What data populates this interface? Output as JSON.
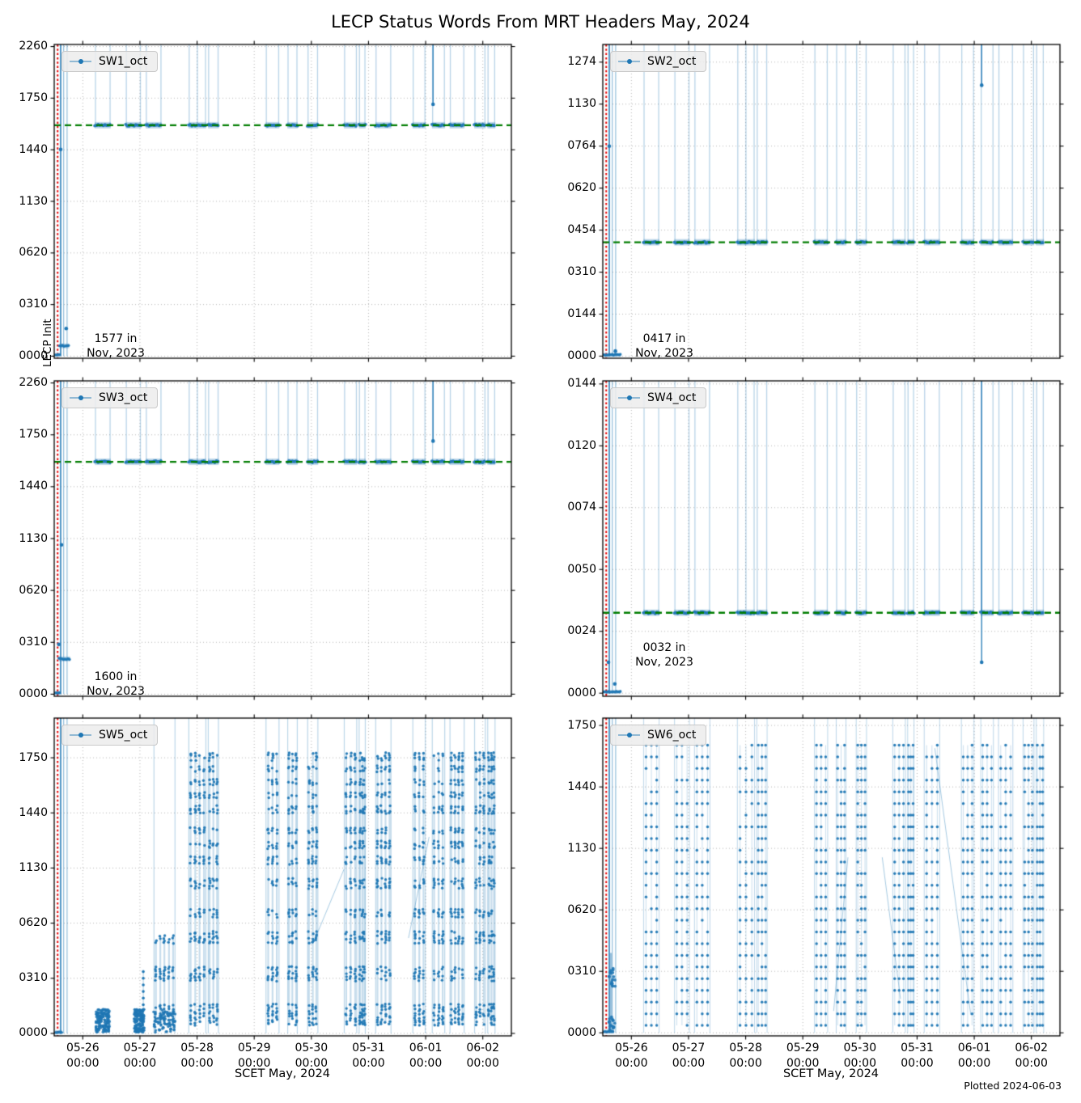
{
  "title": "LECP Status Words From MRT Headers May, 2024",
  "footer": {
    "plotted_note": "Plotted 2024-06-03"
  },
  "x_axis": {
    "label": "SCET May, 2024",
    "dates": [
      "05-26",
      "05-27",
      "05-28",
      "05-29",
      "05-30",
      "05-31",
      "06-01",
      "06-02"
    ],
    "time": "00:00",
    "span_days": 8,
    "tick_days": [
      0.5,
      1.5,
      2.5,
      3.5,
      4.5,
      5.5,
      6.5,
      7.5
    ]
  },
  "style": {
    "point_color": "#1f77b4",
    "light_line": "rgba(31,119,180,0.32)",
    "green_line_color": "#007d00",
    "red_line_color": "#e60000",
    "grid_color": "#b5b5b5",
    "spine_color": "#000000",
    "legend_bg": "#ececec"
  },
  "time_clusters": [
    [
      0.71,
      0.99
    ],
    [
      1.25,
      1.52
    ],
    [
      1.6,
      1.88
    ],
    [
      2.35,
      2.66
    ],
    [
      2.69,
      2.88
    ],
    [
      3.7,
      3.94
    ],
    [
      4.08,
      4.26
    ],
    [
      4.43,
      4.62
    ],
    [
      5.07,
      5.3
    ],
    [
      5.33,
      5.45
    ],
    [
      5.62,
      5.9
    ],
    [
      6.27,
      6.5
    ],
    [
      6.61,
      6.84
    ],
    [
      6.92,
      7.18
    ],
    [
      7.35,
      7.55
    ],
    [
      7.58,
      7.72
    ]
  ],
  "chart_data": [
    {
      "name": "SW1",
      "type": "scatter",
      "mode": "baseline",
      "legend_label": "SW1_oct",
      "ylabel": "LECP Init",
      "ylim": [
        -8,
        1208
      ],
      "yticks": [
        {
          "v": 0,
          "label": "0000"
        },
        {
          "v": 200,
          "label": "0310"
        },
        {
          "v": 400,
          "label": "0620"
        },
        {
          "v": 600,
          "label": "1130"
        },
        {
          "v": 800,
          "label": "1440"
        },
        {
          "v": 1000,
          "label": "1750"
        },
        {
          "v": 1200,
          "label": "2260"
        }
      ],
      "baseline_value": 895,
      "baseline_octal": "1577",
      "green_line": 895,
      "annotation": {
        "line1": "1577 in",
        "line2": "Nov, 2023"
      },
      "red_vline_day": 0.06,
      "dark_vline_day": 0.113,
      "left_vlines": [
        0.165,
        0.225
      ],
      "zero_bar": [
        0.02,
        0.1
      ],
      "low_bar": {
        "range": [
          0.09,
          0.26
        ],
        "value": 40
      },
      "points": [
        [
          0.113,
          801
        ],
        [
          0.21,
          107
        ]
      ],
      "outlier": {
        "day": 6.63,
        "value": 976
      }
    },
    {
      "name": "SW2",
      "type": "scatter",
      "mode": "baseline",
      "legend_label": "SW2_oct",
      "ylim": [
        -5,
        742
      ],
      "yticks": [
        {
          "v": 0,
          "label": "0000"
        },
        {
          "v": 100,
          "label": "0144"
        },
        {
          "v": 200,
          "label": "0310"
        },
        {
          "v": 300,
          "label": "0454"
        },
        {
          "v": 400,
          "label": "0620"
        },
        {
          "v": 500,
          "label": "0764"
        },
        {
          "v": 600,
          "label": "1130"
        },
        {
          "v": 700,
          "label": "1274"
        }
      ],
      "baseline_value": 271,
      "baseline_octal": "0417",
      "green_line": 271,
      "annotation": {
        "line1": "0417 in",
        "line2": "Nov, 2023"
      },
      "red_vline_day": 0.06,
      "dark_vline_day": 0.113,
      "left_vlines": [
        0.165,
        0.225
      ],
      "zero_bar": [
        0.02,
        0.32
      ],
      "points": [
        [
          0.113,
          500
        ],
        [
          0.22,
          12
        ]
      ],
      "outlier": {
        "day": 6.63,
        "value": 645
      }
    },
    {
      "name": "SW3",
      "type": "scatter",
      "mode": "baseline",
      "legend_label": "SW3_oct",
      "ylim": [
        -8,
        1208
      ],
      "yticks": [
        {
          "v": 0,
          "label": "0000"
        },
        {
          "v": 200,
          "label": "0310"
        },
        {
          "v": 400,
          "label": "0620"
        },
        {
          "v": 600,
          "label": "1130"
        },
        {
          "v": 800,
          "label": "1440"
        },
        {
          "v": 1000,
          "label": "1750"
        },
        {
          "v": 1200,
          "label": "2260"
        }
      ],
      "baseline_value": 896,
      "baseline_octal": "1600",
      "green_line": 896,
      "annotation": {
        "line1": "1600 in",
        "line2": "Nov, 2023"
      },
      "red_vline_day": 0.06,
      "dark_vline_day": 0.113,
      "left_vlines": [
        0.165,
        0.225
      ],
      "zero_bar": [
        0.02,
        0.1
      ],
      "low_bar": {
        "range": [
          0.08,
          0.28
        ],
        "value": 136
      },
      "points": [
        [
          0.127,
          576
        ],
        [
          0.08,
          192
        ]
      ],
      "outlier": {
        "day": 6.63,
        "value": 976
      }
    },
    {
      "name": "SW4",
      "type": "scatter",
      "mode": "baseline",
      "legend_label": "SW4_oct",
      "ylim": [
        -1,
        101
      ],
      "yticks": [
        {
          "v": 0,
          "label": "0000"
        },
        {
          "v": 20,
          "label": "0024"
        },
        {
          "v": 40,
          "label": "0050"
        },
        {
          "v": 60,
          "label": "0074"
        },
        {
          "v": 80,
          "label": "0120"
        },
        {
          "v": 100,
          "label": "0144"
        }
      ],
      "baseline_value": 26,
      "baseline_octal": "0032",
      "green_line": 26,
      "annotation": {
        "line1": "0032 in",
        "line2": "Nov, 2023"
      },
      "red_vline_day": 0.06,
      "dark_vline_day": 0.113,
      "left_vlines": [
        0.165,
        0.225
      ],
      "zero_bar": [
        0.02,
        0.32
      ],
      "points": [
        [
          0.1,
          10
        ],
        [
          0.21,
          3
        ]
      ],
      "outlier": {
        "day": 6.63,
        "value": 10
      }
    },
    {
      "name": "SW5",
      "type": "scatter",
      "mode": "burst",
      "legend_label": "SW5_oct",
      "ylim": [
        -9,
        1144
      ],
      "yticks": [
        {
          "v": 0,
          "label": "0000"
        },
        {
          "v": 200,
          "label": "0310"
        },
        {
          "v": 400,
          "label": "0620"
        },
        {
          "v": 600,
          "label": "1130"
        },
        {
          "v": 800,
          "label": "1440"
        },
        {
          "v": 1000,
          "label": "1750"
        }
      ],
      "red_vline_day": 0.06,
      "dark_vline_day": 0.113,
      "left_vlines": [
        0.165,
        0.225
      ],
      "zero_bar": [
        0.02,
        0.14
      ],
      "blob_ranges": [
        [
          0.73,
          0.97
        ],
        [
          1.4,
          1.58
        ]
      ],
      "ramp_range": [
        1.74,
        2.12
      ],
      "ramp_cap": 352,
      "burst_cluster_start": 3,
      "levels": [
        32,
        40,
        48,
        56,
        64,
        72,
        80,
        88,
        96,
        104,
        192,
        200,
        208,
        216,
        224,
        232,
        240,
        328,
        336,
        344,
        352,
        360,
        368,
        424,
        432,
        440,
        448,
        528,
        536,
        544,
        552,
        560,
        616,
        624,
        632,
        640,
        672,
        680,
        688,
        696,
        728,
        736,
        744,
        800,
        808,
        816,
        824,
        856,
        864,
        872,
        904,
        912,
        920,
        952,
        960,
        968,
        992,
        1000,
        1008,
        1016
      ],
      "diagonals": [
        [
          4.57,
          346,
          5.07,
          595
        ],
        [
          6.2,
          346,
          6.56,
          713
        ]
      ]
    },
    {
      "name": "SW6",
      "type": "scatter",
      "mode": "lattice",
      "legend_label": "SW6_oct",
      "ylim": [
        -10,
        1024
      ],
      "yticks": [
        {
          "v": 0,
          "label": "0000"
        },
        {
          "v": 200,
          "label": "0310"
        },
        {
          "v": 400,
          "label": "0620"
        },
        {
          "v": 600,
          "label": "1130"
        },
        {
          "v": 800,
          "label": "1440"
        },
        {
          "v": 1000,
          "label": "1750"
        }
      ],
      "red_vline_day": 0.06,
      "dark_vline_day": 0.113,
      "left_vlines": [
        0.165,
        0.225
      ],
      "zero_bar": [
        0.02,
        0.2
      ],
      "left_column": {
        "x": [
          0.1,
          0.22
        ],
        "vline": 0.14,
        "levels": [
          8,
          16,
          24,
          32,
          40,
          48,
          150,
          160,
          170,
          182,
          194,
          206
        ]
      },
      "levels": [
        24,
        62,
        100,
        138,
        176,
        214,
        252,
        290,
        328,
        366,
        404,
        442,
        480,
        518,
        556,
        594,
        632,
        670,
        708,
        746,
        784,
        822,
        860,
        898,
        936
      ],
      "diagonals": [
        [
          4.04,
          71,
          4.29,
          571
        ],
        [
          4.89,
          571,
          5.21,
          110
        ],
        [
          5.81,
          926,
          6.44,
          58
        ]
      ]
    }
  ]
}
